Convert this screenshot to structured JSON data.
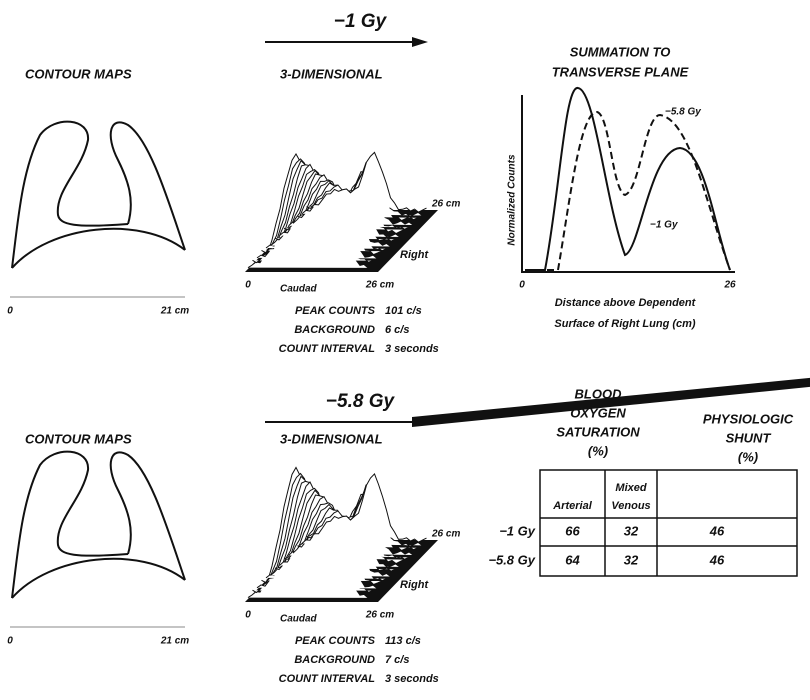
{
  "panels": [
    {
      "contour_title": "CONTOUR MAPS",
      "scale_start": "0",
      "scale_end": "21 cm",
      "condition": "−1 Gy",
      "view_title": "3-DIMENSIONAL",
      "axis_origin": "0",
      "axis_x_end": "26 cm",
      "axis_depth_end": "26 cm",
      "caudad": "Caudad",
      "right": "Right",
      "stats": [
        {
          "label": "PEAK COUNTS",
          "value": "101 c/s"
        },
        {
          "label": "BACKGROUND",
          "value": "6 c/s"
        },
        {
          "label": "COUNT INTERVAL",
          "value": "3 seconds"
        }
      ]
    },
    {
      "contour_title": "CONTOUR MAPS",
      "scale_start": "0",
      "scale_end": "21 cm",
      "condition": "−5.8 Gy",
      "view_title": "3-DIMENSIONAL",
      "axis_origin": "0",
      "axis_x_end": "26 cm",
      "axis_depth_end": "26 cm",
      "caudad": "Caudad",
      "right": "Right",
      "stats": [
        {
          "label": "PEAK COUNTS",
          "value": "113 c/s"
        },
        {
          "label": "BACKGROUND",
          "value": "7 c/s"
        },
        {
          "label": "COUNT INTERVAL",
          "value": "3 seconds"
        }
      ]
    }
  ],
  "summation": {
    "title": [
      "SUMMATION TO",
      "TRANSVERSE PLANE"
    ],
    "y_label": "Normalized Counts",
    "x_start": "0",
    "x_end": "26",
    "curve_labels": [
      "−5.8 Gy",
      "−1 Gy"
    ],
    "x_label": [
      "Distance above Dependent",
      "Surface of Right Lung (cm)"
    ]
  },
  "table": {
    "group_headers": [
      [
        "BLOOD",
        "OXYGEN",
        "SATURATION",
        "(%)"
      ],
      [
        "PHYSIOLOGIC",
        "SHUNT",
        "(%)"
      ]
    ],
    "subheaders": [
      [
        "Arterial"
      ],
      [
        "Mixed",
        "Venous"
      ]
    ],
    "rows": [
      {
        "label": "−1 Gy",
        "values": [
          66,
          32,
          46
        ]
      },
      {
        "label": "−5.8 Gy",
        "values": [
          64,
          32,
          46
        ]
      }
    ]
  }
}
